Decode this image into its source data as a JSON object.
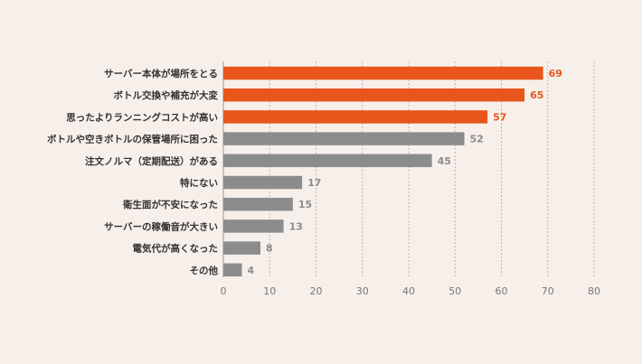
{
  "chart_data": {
    "type": "bar",
    "orientation": "horizontal",
    "categories": [
      "サーバー本体が場所をとる",
      "ボトル交換や補充が大変",
      "思ったよりランニングコストが高い",
      "ボトルや空きボトルの保管場所に困った",
      "注文ノルマ（定期配送）がある",
      "特にない",
      "衛生面が不安になった",
      "サーバーの稼働音が大きい",
      "電気代が高くなった",
      "その他"
    ],
    "values": [
      69,
      65,
      57,
      52,
      45,
      17,
      15,
      13,
      8,
      4
    ],
    "value_labels": [
      "69",
      "65",
      "57",
      "52",
      "45",
      "17",
      "15",
      "13",
      "8",
      "4"
    ],
    "highlight": [
      true,
      true,
      true,
      false,
      false,
      false,
      false,
      false,
      false,
      false
    ],
    "xticks": [
      0,
      10,
      20,
      30,
      40,
      50,
      60,
      70,
      80
    ],
    "xtick_labels": [
      "0",
      "10",
      "20",
      "30",
      "40",
      "50",
      "60",
      "70",
      "80"
    ],
    "xlim": [
      0,
      80
    ],
    "grid": true,
    "title": "",
    "xlabel": "",
    "ylabel": ""
  },
  "colors": {
    "background": "#f7efea",
    "highlight_bar": "#e8561c",
    "normal_bar": "#8c8c8c",
    "highlight_text": "#e8561c",
    "normal_text": "#8c8c8c",
    "label_text": "#333333"
  }
}
